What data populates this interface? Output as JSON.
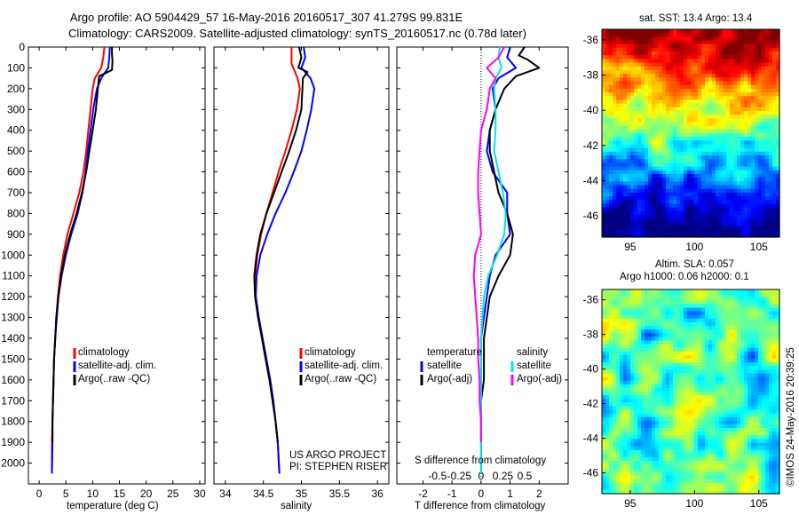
{
  "header": {
    "line1": "Argo profile: AO 5904429_57 16-May-2016 20160517_307 41.279S 99.831E",
    "line2": "Climatology: CARS2009. Satellite-adjusted climatology: synTS_20160517.nc (0.78d later)"
  },
  "colors": {
    "climatology": "#ff0000",
    "satellite": "#0000ff",
    "argo": "#000000",
    "sat_salinity": "#00e5e5",
    "argo_salinity": "#ff00ff"
  },
  "panels": {
    "temperature": {
      "xlabel": "temperature (deg C)",
      "legend": [
        "climatology",
        "satellite-adj. clim.",
        "Argo(..raw -QC)"
      ]
    },
    "salinity": {
      "xlabel": "salinity",
      "legend": [
        "climatology",
        "satellite-adj. clim.",
        "Argo(..raw -QC)"
      ],
      "credit1": "US ARGO PROJECT",
      "credit2": "PI: STEPHEN RISER"
    },
    "difference": {
      "xlabel": "T difference from climatology",
      "s_label": "S difference from climatology",
      "legend_temp_title": "temperature",
      "legend_sal_title": "salinity",
      "legend_temp": [
        "satellite",
        "Argo(-adj)"
      ],
      "legend_sal": [
        "satellite",
        "Argo(-adj)"
      ]
    },
    "sst_map": {
      "title": "sat. SST: 13.4 Argo: 13.4"
    },
    "sla_map": {
      "title1": "Altim. SLA: 0.057",
      "title2": "Argo h1000: 0.06 h2000: 0.1"
    }
  },
  "side_text": "©IMOS 24-May-2016 20:39:25",
  "chart_data": [
    {
      "type": "line",
      "xlabel": "temperature (deg C)",
      "ylabel": "",
      "xlim": [
        -2,
        31
      ],
      "ylim": [
        2100,
        0
      ],
      "xticks": [
        0,
        5,
        10,
        15,
        20,
        25,
        30
      ],
      "yticks": [
        0,
        100,
        200,
        300,
        400,
        500,
        600,
        700,
        800,
        900,
        1000,
        1100,
        1200,
        1300,
        1400,
        1500,
        1600,
        1700,
        1800,
        1900,
        2000
      ],
      "series": [
        {
          "name": "climatology",
          "color": "#ff0000",
          "width": 2,
          "x": [
            12.2,
            12.0,
            11.6,
            10.4,
            10.0,
            9.6,
            9.2,
            8.8,
            8.3,
            7.5,
            6.4,
            5.3,
            4.5,
            3.9,
            3.5,
            3.2,
            3.0,
            2.8,
            2.7,
            2.6,
            2.5,
            2.4,
            2.4
          ],
          "y": [
            0,
            50,
            100,
            150,
            200,
            300,
            400,
            500,
            600,
            700,
            800,
            900,
            1000,
            1100,
            1200,
            1300,
            1400,
            1500,
            1600,
            1700,
            1800,
            1900,
            2050
          ]
        },
        {
          "name": "satellite-adj. clim.",
          "color": "#0000ff",
          "width": 2,
          "x": [
            13.2,
            13.1,
            12.9,
            11.6,
            10.8,
            10.1,
            9.6,
            9.1,
            8.7,
            8.1,
            7.2,
            6.0,
            5.0,
            4.2,
            3.6,
            3.3,
            3.0,
            2.8,
            2.7,
            2.6,
            2.5,
            2.5,
            2.4
          ],
          "y": [
            0,
            50,
            100,
            150,
            200,
            300,
            400,
            500,
            600,
            700,
            800,
            900,
            1000,
            1100,
            1200,
            1300,
            1400,
            1500,
            1600,
            1700,
            1800,
            1900,
            2050
          ]
        },
        {
          "name": "Argo(..raw -QC)",
          "color": "#000000",
          "width": 2,
          "x": [
            13.6,
            13.6,
            13.7,
            13.6,
            11.2,
            10.6,
            10.0,
            9.4,
            8.8,
            8.0,
            7.0,
            5.8,
            4.8,
            4.1,
            3.6,
            3.2,
            3.0,
            2.8,
            2.7,
            2.6,
            2.5,
            2.5
          ],
          "y": [
            0,
            30,
            70,
            110,
            140,
            300,
            400,
            500,
            600,
            700,
            800,
            900,
            1000,
            1100,
            1200,
            1300,
            1400,
            1500,
            1600,
            1700,
            1800,
            1900
          ]
        }
      ]
    },
    {
      "type": "line",
      "xlabel": "salinity",
      "ylabel": "",
      "xlim": [
        33.85,
        36.15
      ],
      "ylim": [
        2100,
        0
      ],
      "xticks": [
        34,
        34.5,
        35,
        35.5,
        36
      ],
      "yticks": [
        0,
        100,
        200,
        300,
        400,
        500,
        600,
        700,
        800,
        900,
        1000,
        1100,
        1200,
        1300,
        1400,
        1500,
        1600,
        1700,
        1800,
        1900,
        2000
      ],
      "series": [
        {
          "name": "climatology",
          "color": "#ff0000",
          "width": 2,
          "x": [
            34.87,
            34.87,
            34.95,
            34.98,
            34.94,
            34.87,
            34.79,
            34.7,
            34.62,
            34.54,
            34.47,
            34.42,
            34.39,
            34.4,
            34.44,
            34.49,
            34.54,
            34.59,
            34.63,
            34.66,
            34.69,
            34.71
          ],
          "y": [
            0,
            80,
            150,
            200,
            300,
            400,
            500,
            600,
            700,
            800,
            900,
            1000,
            1100,
            1200,
            1300,
            1400,
            1500,
            1600,
            1700,
            1800,
            1900,
            2050
          ]
        },
        {
          "name": "satellite-adj. clim.",
          "color": "#0000ff",
          "width": 2,
          "x": [
            35.03,
            35.05,
            35.0,
            35.12,
            35.17,
            35.13,
            35.07,
            35.0,
            34.9,
            34.79,
            34.66,
            34.55,
            34.46,
            34.41,
            34.4,
            34.44,
            34.49,
            34.54,
            34.59,
            34.63,
            34.66,
            34.69,
            34.71
          ],
          "y": [
            0,
            50,
            100,
            150,
            200,
            300,
            400,
            500,
            600,
            700,
            800,
            900,
            1000,
            1100,
            1200,
            1300,
            1400,
            1500,
            1600,
            1700,
            1800,
            1900,
            2050
          ]
        },
        {
          "name": "Argo(..raw -QC)",
          "color": "#000000",
          "width": 2,
          "x": [
            34.97,
            35.0,
            34.96,
            35.08,
            35.02,
            35.0,
            34.93,
            34.84,
            34.74,
            34.64,
            34.54,
            34.46,
            34.41,
            34.38,
            34.39,
            34.43,
            34.48,
            34.53,
            34.58,
            34.62,
            34.66,
            34.69
          ],
          "y": [
            0,
            50,
            100,
            120,
            150,
            300,
            400,
            500,
            600,
            700,
            800,
            900,
            1000,
            1100,
            1200,
            1300,
            1400,
            1500,
            1600,
            1700,
            1800,
            1900
          ]
        }
      ]
    },
    {
      "type": "line",
      "xlabel": "T difference from climatology",
      "ylabel": "",
      "xlim": [
        -2.9,
        3.0
      ],
      "ylim": [
        2100,
        0
      ],
      "xticks": [
        -2,
        -1,
        0,
        1,
        2
      ],
      "s_xticks_label": [
        "-0.5",
        "-0.25",
        "0",
        "0.25",
        "0.5"
      ],
      "yticks": [
        0,
        100,
        200,
        300,
        400,
        500,
        600,
        700,
        800,
        900,
        1000,
        1100,
        1200,
        1300,
        1400,
        1500,
        1600,
        1700,
        1800,
        1900,
        2000
      ],
      "series": [
        {
          "name": "satellite",
          "group": "temperature",
          "color": "#0000ff",
          "width": 2,
          "x": [
            1.0,
            0.9,
            1.2,
            0.6,
            0.4,
            0.5,
            0.3,
            0.2,
            0.4,
            0.9,
            0.9,
            1.0,
            0.5,
            0.3,
            0.2,
            0.1,
            0.0,
            0.0,
            0.0,
            0.0,
            0.0,
            0.0
          ],
          "y": [
            0,
            50,
            100,
            150,
            200,
            300,
            400,
            500,
            600,
            700,
            800,
            900,
            1000,
            1100,
            1200,
            1300,
            1400,
            1500,
            1600,
            1700,
            1800,
            2050
          ]
        },
        {
          "name": "Argo(-adj)",
          "group": "temperature",
          "color": "#000000",
          "width": 2,
          "x": [
            1.5,
            1.3,
            1.6,
            2.0,
            1.2,
            0.8,
            0.5,
            0.3,
            0.3,
            0.6,
            0.9,
            1.1,
            1.0,
            0.6,
            0.3,
            0.2,
            0.1,
            0.1,
            0.1,
            0.0,
            0.0,
            0.0
          ],
          "y": [
            0,
            40,
            60,
            100,
            140,
            200,
            300,
            400,
            500,
            700,
            800,
            900,
            1000,
            1100,
            1200,
            1300,
            1400,
            1500,
            1600,
            1700,
            1800,
            1900
          ]
        },
        {
          "name": "satellite",
          "group": "salinity",
          "color": "#00e5e5",
          "width": 2,
          "x": [
            0.65,
            0.6,
            0.7,
            0.5,
            0.45,
            0.5,
            0.5,
            0.45,
            0.6,
            0.75,
            0.85,
            0.8,
            0.55,
            0.25,
            0.1,
            0.05,
            0.0,
            0.0,
            0.0,
            0.0,
            0.0,
            0.0
          ],
          "y": [
            0,
            50,
            100,
            150,
            200,
            300,
            400,
            500,
            600,
            700,
            800,
            900,
            1000,
            1100,
            1200,
            1300,
            1400,
            1500,
            1600,
            1700,
            1800,
            2050
          ]
        },
        {
          "name": "Argo(-adj)",
          "group": "salinity",
          "color": "#ff00ff",
          "width": 2,
          "x": [
            0.8,
            0.6,
            0.2,
            0.5,
            0.3,
            0.2,
            0.0,
            -0.05,
            -0.1,
            -0.1,
            -0.05,
            0.0,
            -0.2,
            -0.25,
            -0.2,
            -0.15,
            -0.1,
            -0.1,
            -0.05,
            -0.05,
            0.0,
            0.0
          ],
          "y": [
            0,
            50,
            100,
            150,
            200,
            300,
            400,
            500,
            600,
            700,
            800,
            900,
            1000,
            1100,
            1200,
            1300,
            1400,
            1500,
            1600,
            1700,
            1800,
            1900
          ]
        }
      ]
    },
    {
      "type": "heatmap",
      "title": "sat. SST: 13.4 Argo: 13.4",
      "xlim": [
        92.8,
        106.6
      ],
      "ylim": [
        -47.2,
        -35.4
      ],
      "xticks": [
        95,
        100,
        105
      ],
      "yticks": [
        -36,
        -38,
        -40,
        -42,
        -44,
        -46
      ]
    },
    {
      "type": "heatmap",
      "title": "Altim. SLA: 0.057",
      "subtitle": "Argo h1000: 0.06 h2000: 0.1",
      "xlim": [
        92.8,
        106.6
      ],
      "ylim": [
        -47.2,
        -35.4
      ],
      "xticks": [
        95,
        100,
        105
      ],
      "yticks": [
        -36,
        -38,
        -40,
        -42,
        -44,
        -46
      ]
    }
  ]
}
